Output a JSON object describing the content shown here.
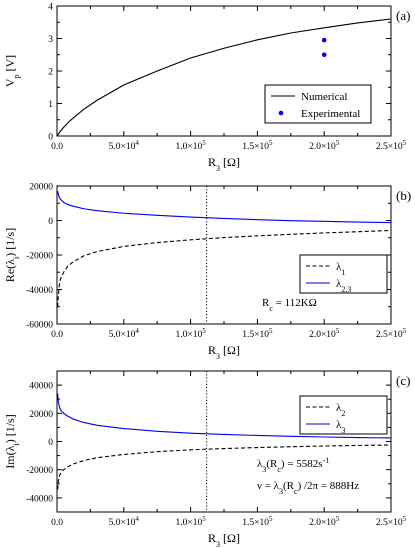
{
  "colors": {
    "blue": "#0000ee",
    "black": "#000000"
  },
  "panels": [
    {
      "id": "a",
      "panel_label": "(a)",
      "ylabel_parts": [
        [
          "V",
          ""
        ],
        [
          "p",
          "sub"
        ],
        [
          " [V]",
          ""
        ]
      ],
      "xlabel_parts": [
        [
          "R",
          ""
        ],
        [
          "3",
          "sub"
        ],
        [
          " [Ω]",
          ""
        ]
      ],
      "x_tick_labels": [
        "0.0",
        "5.0×10",
        "1.0×10",
        "1.5×10",
        "2.0×10",
        "2.5×10"
      ],
      "x_tick_exps": [
        "",
        "4",
        "5",
        "5",
        "5",
        "5"
      ],
      "y_tick_labels": [
        "0",
        "1",
        "2",
        "3",
        "4"
      ],
      "legend": [
        {
          "label_parts": [
            [
              "Numerical",
              ""
            ]
          ]
        },
        {
          "label_parts": [
            [
              "Experimental",
              ""
            ]
          ]
        }
      ]
    },
    {
      "id": "b",
      "panel_label": "(b)",
      "ylabel_parts": [
        [
          "Re(λ",
          ""
        ],
        [
          "i",
          "sub"
        ],
        [
          ") [1/s]",
          ""
        ]
      ],
      "xlabel_parts": [
        [
          "R",
          ""
        ],
        [
          "3",
          "sub"
        ],
        [
          " [Ω]",
          ""
        ]
      ],
      "x_tick_labels": [
        "0.0",
        "5.0×10",
        "1.0×10",
        "1.5×10",
        "2.0×10",
        "2.5×10"
      ],
      "x_tick_exps": [
        "",
        "4",
        "5",
        "5",
        "5",
        "5"
      ],
      "y_tick_labels": [
        "-60000",
        "-40000",
        "-20000",
        "0",
        "20000"
      ],
      "legend": [
        {
          "label_parts": [
            [
              "λ",
              ""
            ],
            [
              "1",
              "sub"
            ]
          ]
        },
        {
          "label_parts": [
            [
              "λ",
              ""
            ],
            [
              "2,3",
              "sub"
            ]
          ]
        }
      ],
      "annotations": [
        {
          "parts": [
            [
              "R",
              ""
            ],
            [
              "c",
              "sub"
            ],
            [
              " = 112KΩ",
              ""
            ]
          ]
        }
      ]
    },
    {
      "id": "c",
      "panel_label": "(c)",
      "ylabel_parts": [
        [
          "Im(λ",
          ""
        ],
        [
          "i",
          "sub"
        ],
        [
          ") [1/s]",
          ""
        ]
      ],
      "xlabel_parts": [
        [
          "R",
          ""
        ],
        [
          "3",
          "sub"
        ],
        [
          " [Ω]",
          ""
        ]
      ],
      "x_tick_labels": [
        "0.0",
        "5.0×10",
        "1.0×10",
        "1.5×10",
        "2.0×10",
        "2.5×10"
      ],
      "x_tick_exps": [
        "",
        "4",
        "5",
        "5",
        "5",
        "5"
      ],
      "y_tick_labels": [
        "-40000",
        "-20000",
        "0",
        "20000",
        "40000"
      ],
      "legend": [
        {
          "label_parts": [
            [
              "λ",
              ""
            ],
            [
              "2",
              "sub"
            ]
          ]
        },
        {
          "label_parts": [
            [
              "λ",
              ""
            ],
            [
              "3",
              "sub"
            ]
          ]
        }
      ],
      "annotations": [
        {
          "parts": [
            [
              "λ",
              ""
            ],
            [
              "3",
              "sub"
            ],
            [
              "(R",
              ""
            ],
            [
              "c",
              "sub"
            ],
            [
              ") = 5582s",
              ""
            ],
            [
              "-1",
              "sup"
            ]
          ]
        },
        {
          "parts": [
            [
              "ν = λ",
              ""
            ],
            [
              "3",
              "sub"
            ],
            [
              "(R",
              ""
            ],
            [
              "c",
              "sub"
            ],
            [
              ") /2π = 888Hz",
              ""
            ]
          ]
        }
      ]
    }
  ],
  "chart_data": [
    {
      "type": "line",
      "panel": "a",
      "xlim": [
        0,
        250000
      ],
      "ylim": [
        0,
        4
      ],
      "x_ticks": [
        0,
        50000,
        100000,
        150000,
        200000,
        250000
      ],
      "y_ticks": [
        0,
        1,
        2,
        3,
        4
      ],
      "legend_position": "bottom-right",
      "series": [
        {
          "name": "Numerical",
          "style": "solid",
          "color": "#000000",
          "x": [
            0,
            2000,
            5000,
            10000,
            20000,
            30000,
            50000,
            75000,
            100000,
            125000,
            150000,
            175000,
            200000,
            225000,
            250000
          ],
          "y": [
            0,
            0.12,
            0.27,
            0.48,
            0.82,
            1.1,
            1.57,
            2.0,
            2.4,
            2.7,
            2.96,
            3.17,
            3.33,
            3.48,
            3.6
          ]
        },
        {
          "name": "Experimental",
          "style": "points",
          "color": "#0000ee",
          "x": [
            200000,
            200000
          ],
          "y": [
            2.95,
            2.5
          ]
        }
      ]
    },
    {
      "type": "line",
      "panel": "b",
      "xlim": [
        0,
        250000
      ],
      "ylim": [
        -60000,
        20000
      ],
      "x_ticks": [
        0,
        50000,
        100000,
        150000,
        200000,
        250000
      ],
      "y_ticks": [
        -60000,
        -40000,
        -20000,
        0,
        20000
      ],
      "vline_x": 112000,
      "legend_position": "middle-right",
      "series": [
        {
          "name": "λ1",
          "style": "dashed",
          "color": "#000000",
          "x": [
            500,
            1000,
            2000,
            3000,
            5000,
            8000,
            12000,
            20000,
            30000,
            50000,
            75000,
            100000,
            125000,
            150000,
            175000,
            200000,
            225000,
            250000
          ],
          "y": [
            -50000,
            -43000,
            -36000,
            -33000,
            -30000,
            -26500,
            -24000,
            -20500,
            -18000,
            -15000,
            -12800,
            -11200,
            -9900,
            -8900,
            -8000,
            -7200,
            -6500,
            -5800
          ]
        },
        {
          "name": "λ2,3",
          "style": "solid",
          "color": "#0000ee",
          "x": [
            500,
            1000,
            2000,
            3000,
            5000,
            8000,
            12000,
            20000,
            30000,
            50000,
            75000,
            100000,
            125000,
            150000,
            175000,
            200000,
            225000,
            250000
          ],
          "y": [
            17000,
            15000,
            13000,
            12000,
            10500,
            9300,
            8300,
            6800,
            5700,
            4200,
            3000,
            2000,
            1200,
            500,
            -100,
            -500,
            -900,
            -1200
          ]
        }
      ]
    },
    {
      "type": "line",
      "panel": "c",
      "xlim": [
        0,
        250000
      ],
      "ylim": [
        -50000,
        50000
      ],
      "x_ticks": [
        0,
        50000,
        100000,
        150000,
        200000,
        250000
      ],
      "y_ticks": [
        -40000,
        -20000,
        0,
        20000,
        40000
      ],
      "vline_x": 112000,
      "legend_position": "top-right",
      "series": [
        {
          "name": "λ2",
          "style": "dashed",
          "color": "#000000",
          "x": [
            500,
            1000,
            2000,
            3000,
            5000,
            8000,
            12000,
            20000,
            30000,
            50000,
            75000,
            100000,
            125000,
            150000,
            175000,
            200000,
            225000,
            250000
          ],
          "y": [
            -34000,
            -28000,
            -24000,
            -22000,
            -20000,
            -18000,
            -16000,
            -13500,
            -11500,
            -9200,
            -7200,
            -5900,
            -5000,
            -4300,
            -3700,
            -3200,
            -2800,
            -2500
          ]
        },
        {
          "name": "λ3",
          "style": "solid",
          "color": "#0000ee",
          "x": [
            500,
            1000,
            2000,
            3000,
            5000,
            8000,
            12000,
            20000,
            30000,
            50000,
            75000,
            100000,
            125000,
            150000,
            175000,
            200000,
            225000,
            250000
          ],
          "y": [
            34000,
            28000,
            24000,
            22000,
            20000,
            18000,
            16000,
            13500,
            11500,
            9200,
            7200,
            5900,
            5000,
            4300,
            3700,
            3200,
            2800,
            2500
          ]
        }
      ]
    }
  ]
}
